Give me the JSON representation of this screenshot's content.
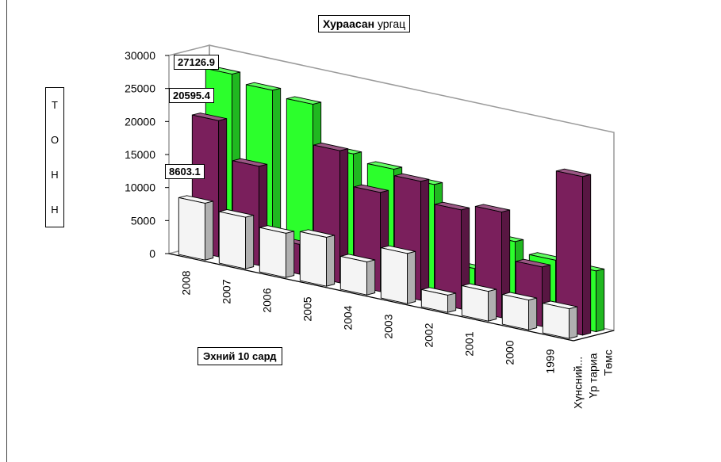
{
  "chart_data": {
    "type": "bar",
    "title_bold": "Хураасан",
    "title_rest": " ургац",
    "ylabel": "Т О Н Н",
    "xlabel": "Эхний 10 сард",
    "categories": [
      "2008",
      "2007",
      "2006",
      "2005",
      "2004",
      "2003",
      "2002",
      "2001",
      "2000",
      "1999"
    ],
    "series": [
      {
        "name": "Хүнсний...",
        "color": "#f4f4f4",
        "values": [
          8603.1,
          7800,
          6700,
          7400,
          5000,
          7600,
          2600,
          4500,
          4500,
          4500
        ]
      },
      {
        "name": "Үр тариа",
        "color": "#7a1f5c",
        "values": [
          20595.4,
          15000,
          4500,
          20000,
          15000,
          18000,
          15000,
          16000,
          9000,
          24000
        ]
      },
      {
        "name": "Төмс",
        "color": "#2cff2c",
        "values": [
          27126.9,
          26000,
          25200,
          19000,
          18000,
          17000,
          5600,
          11000,
          9500,
          9200
        ]
      }
    ],
    "y_ticks": [
      "0",
      "5000",
      "10000",
      "15000",
      "20000",
      "25000",
      "30000"
    ],
    "ylim": [
      0,
      30000
    ],
    "data_labels": [
      "27126.9",
      "20595.4",
      "8603.1"
    ],
    "grid": false,
    "legend": "none"
  }
}
